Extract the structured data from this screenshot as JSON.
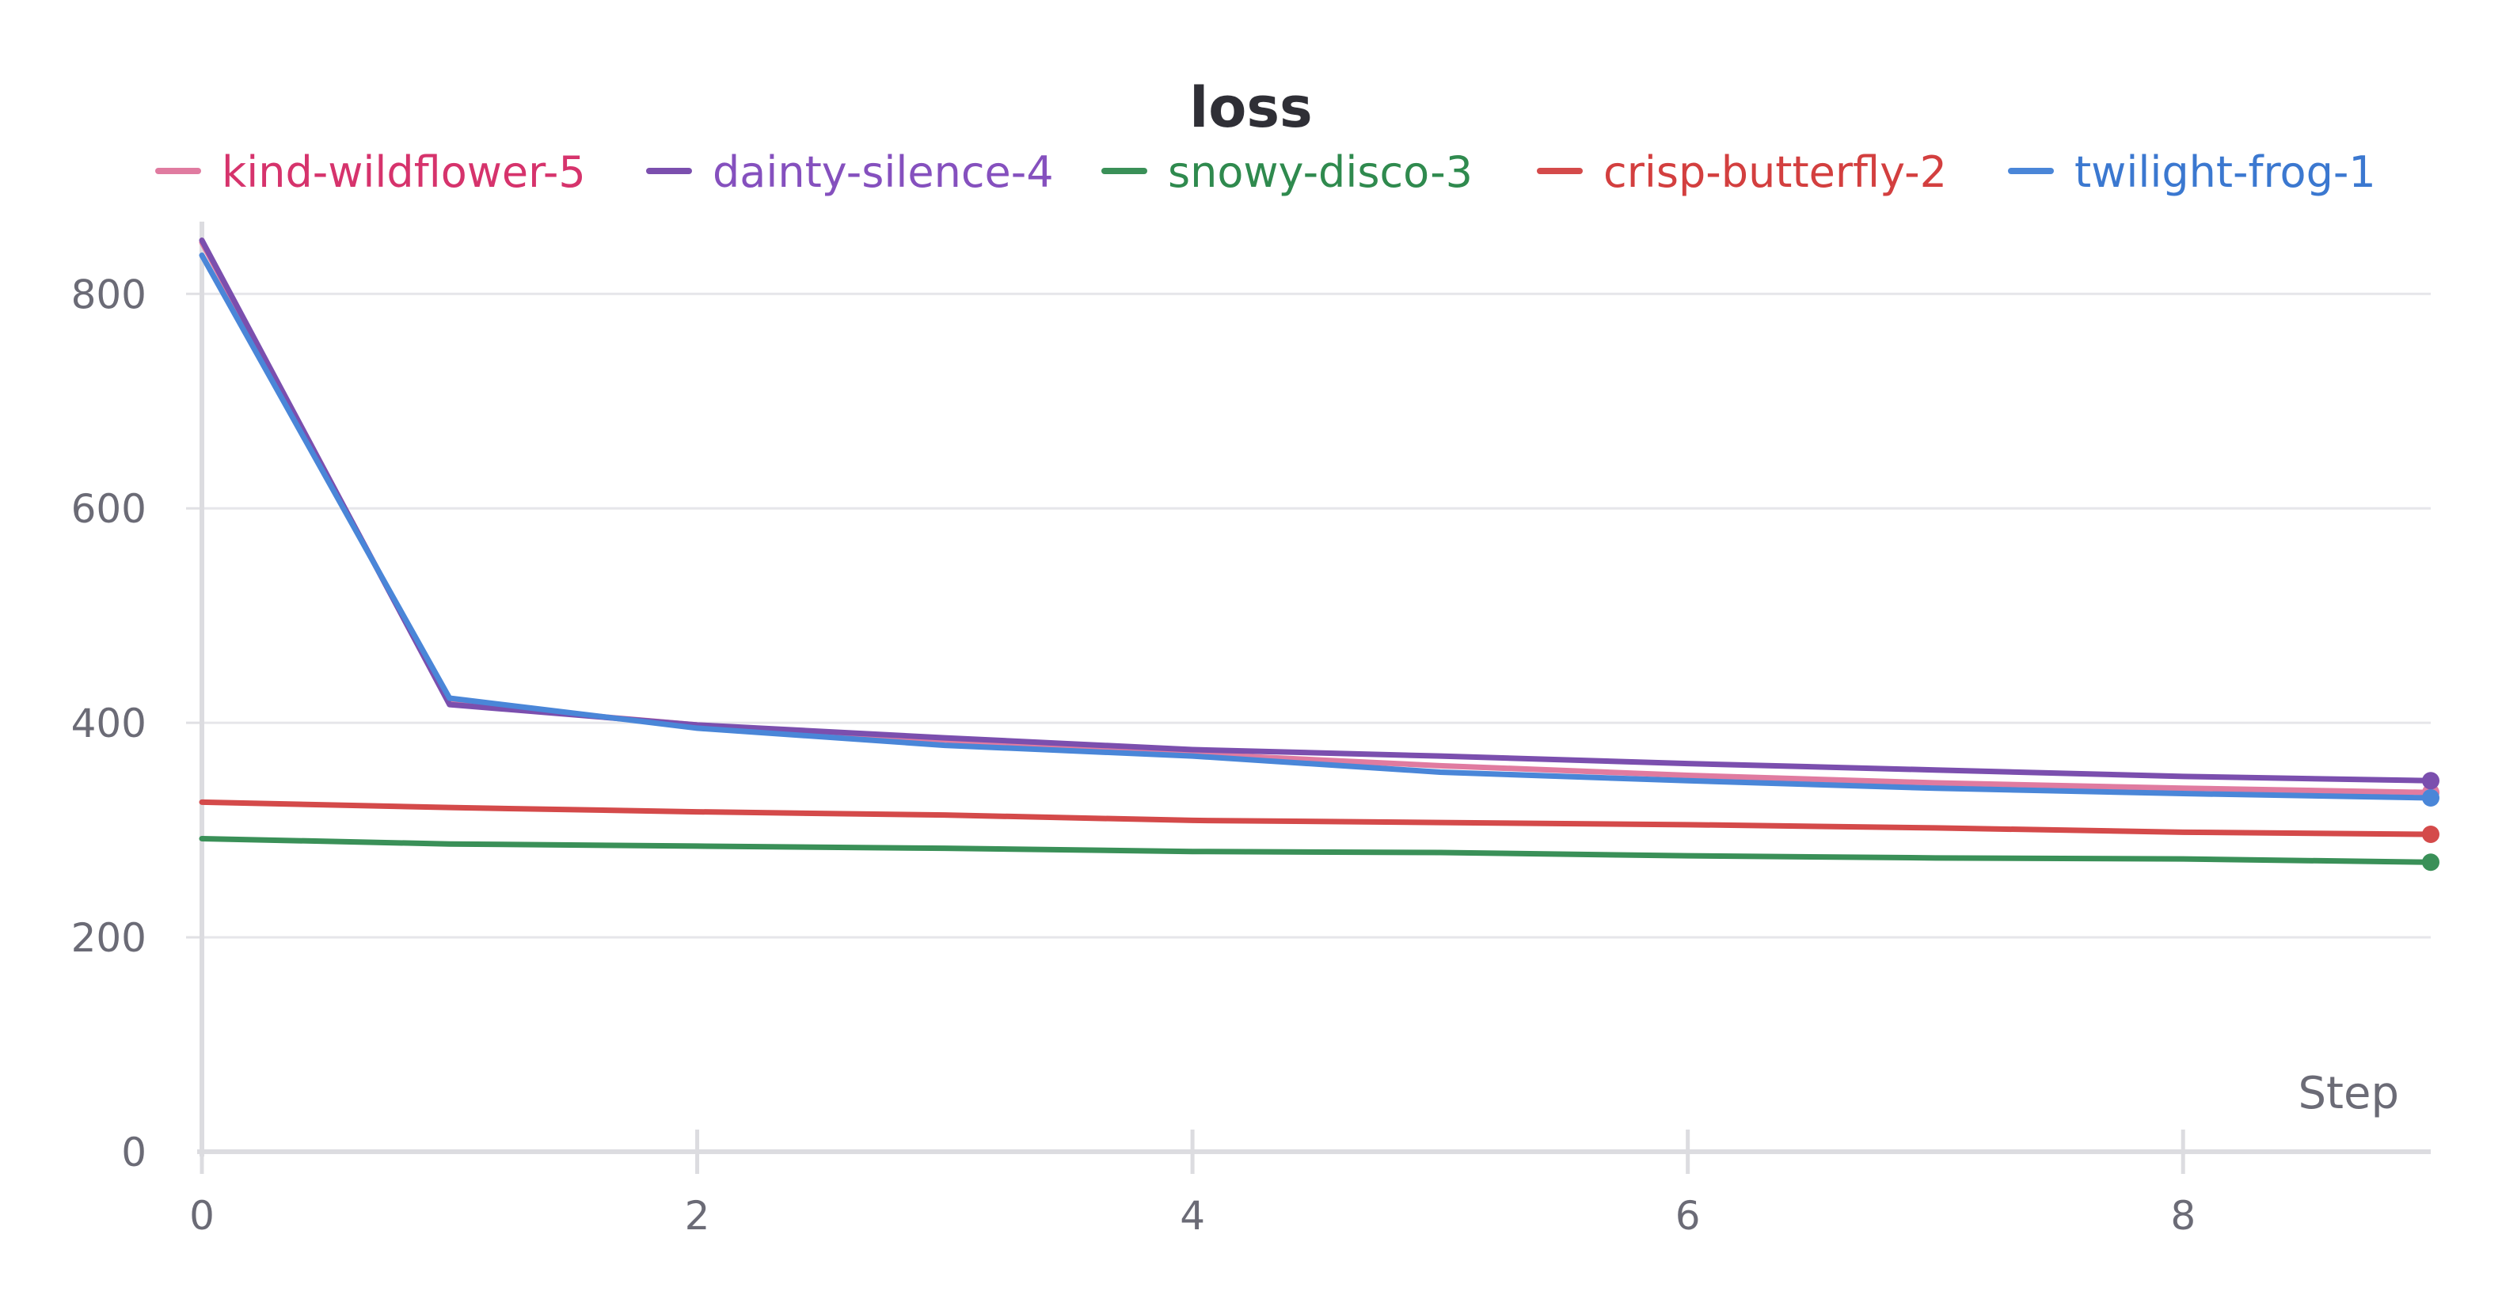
{
  "chart_data": {
    "type": "line",
    "title": "loss",
    "xlabel": "Step",
    "ylabel": "",
    "xlim": [
      0,
      9
    ],
    "ylim": [
      0,
      860
    ],
    "x_ticks": [
      0,
      2,
      4,
      6,
      8
    ],
    "y_ticks": [
      0,
      200,
      400,
      600,
      800
    ],
    "grid": true,
    "legend_position": "top",
    "x": [
      0,
      1,
      2,
      3,
      4,
      5,
      6,
      7,
      8,
      9
    ],
    "series": [
      {
        "name": "kind-wildflower-5",
        "color": "#e07ba0",
        "label_color": "#d6336c",
        "values": [
          848,
          418,
          398,
          384,
          371,
          360,
          351,
          344,
          339,
          335
        ]
      },
      {
        "name": "dainty-silence-4",
        "color": "#7b4fae",
        "label_color": "#8550be",
        "values": [
          850,
          417,
          398,
          386,
          375,
          369,
          362,
          356,
          350,
          346
        ]
      },
      {
        "name": "snowy-disco-3",
        "color": "#3a9058",
        "label_color": "#2f8a4e",
        "values": [
          292,
          287,
          285,
          283,
          280,
          279,
          276,
          274,
          273,
          270
        ]
      },
      {
        "name": "crisp-butterfly-2",
        "color": "#d44a4a",
        "label_color": "#d33f3f",
        "values": [
          326,
          321,
          317,
          314,
          309,
          307,
          305,
          302,
          298,
          296
        ]
      },
      {
        "name": "twilight-frog-1",
        "color": "#4a86d8",
        "label_color": "#3b78d0",
        "values": [
          836,
          423,
          395,
          379,
          369,
          354,
          346,
          339,
          334,
          330
        ]
      }
    ]
  }
}
